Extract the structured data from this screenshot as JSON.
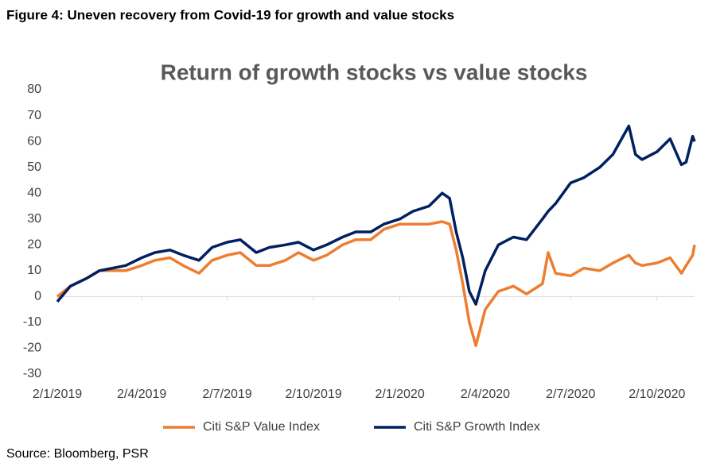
{
  "heading": "Figure 4: Uneven recovery from Covid-19 for growth and value stocks",
  "source": "Source: Bloomberg, PSR",
  "chart_data": {
    "type": "line",
    "title": "Return of growth stocks vs value stocks",
    "x": [
      "2/1/2019",
      "16/1/2019",
      "2/2/2019",
      "16/2/2019",
      "2/3/2019",
      "16/3/2019",
      "2/4/2019",
      "16/4/2019",
      "2/5/2019",
      "16/5/2019",
      "2/6/2019",
      "16/6/2019",
      "2/7/2019",
      "16/7/2019",
      "2/8/2019",
      "16/8/2019",
      "2/9/2019",
      "16/9/2019",
      "2/10/2019",
      "16/10/2019",
      "2/11/2019",
      "16/11/2019",
      "2/12/2019",
      "16/12/2019",
      "2/1/2020",
      "16/1/2020",
      "2/2/2020",
      "16/2/2020",
      "24/2/2020",
      "2/3/2020",
      "9/3/2020",
      "16/3/2020",
      "23/3/2020",
      "2/4/2020",
      "16/4/2020",
      "2/5/2020",
      "16/5/2020",
      "2/6/2020",
      "8/6/2020",
      "16/6/2020",
      "2/7/2020",
      "16/7/2020",
      "2/8/2020",
      "16/8/2020",
      "2/9/2020",
      "9/9/2020",
      "16/9/2020",
      "2/10/2020",
      "16/10/2020",
      "28/10/2020",
      "2/11/2020",
      "9/11/2020",
      "11/11/2020"
    ],
    "series": [
      {
        "name": "Citi S&P Value Index",
        "color": "#ED7D31",
        "values": [
          0,
          4,
          7,
          10,
          10,
          10,
          12,
          14,
          15,
          12,
          9,
          14,
          16,
          17,
          12,
          12,
          14,
          17,
          14,
          16,
          20,
          22,
          22,
          26,
          28,
          28,
          28,
          29,
          28,
          18,
          5,
          -10,
          -19,
          -5,
          2,
          4,
          1,
          5,
          17,
          9,
          8,
          11,
          10,
          13,
          16,
          13,
          12,
          13,
          15,
          9,
          12,
          16,
          20
        ]
      },
      {
        "name": "Citi S&P Growth Index",
        "color": "#002060",
        "values": [
          -2,
          4,
          7,
          10,
          11,
          12,
          15,
          17,
          18,
          16,
          14,
          19,
          21,
          22,
          17,
          19,
          20,
          21,
          18,
          20,
          23,
          25,
          25,
          28,
          30,
          33,
          35,
          40,
          38,
          25,
          15,
          2,
          -3,
          10,
          20,
          23,
          22,
          30,
          33,
          36,
          44,
          46,
          50,
          55,
          66,
          55,
          53,
          56,
          61,
          51,
          52,
          62,
          60
        ]
      }
    ],
    "xlim": [
      "2/1/2019",
      "11/11/2020"
    ],
    "xticks": [
      "2/1/2019",
      "2/4/2019",
      "2/7/2019",
      "2/10/2019",
      "2/1/2020",
      "2/4/2020",
      "2/7/2020",
      "2/10/2020"
    ],
    "ylim": [
      -30,
      80
    ],
    "yticks": [
      -30,
      -20,
      -10,
      0,
      10,
      20,
      30,
      40,
      50,
      60,
      70,
      80
    ],
    "grid": false,
    "legend": "bottom"
  }
}
